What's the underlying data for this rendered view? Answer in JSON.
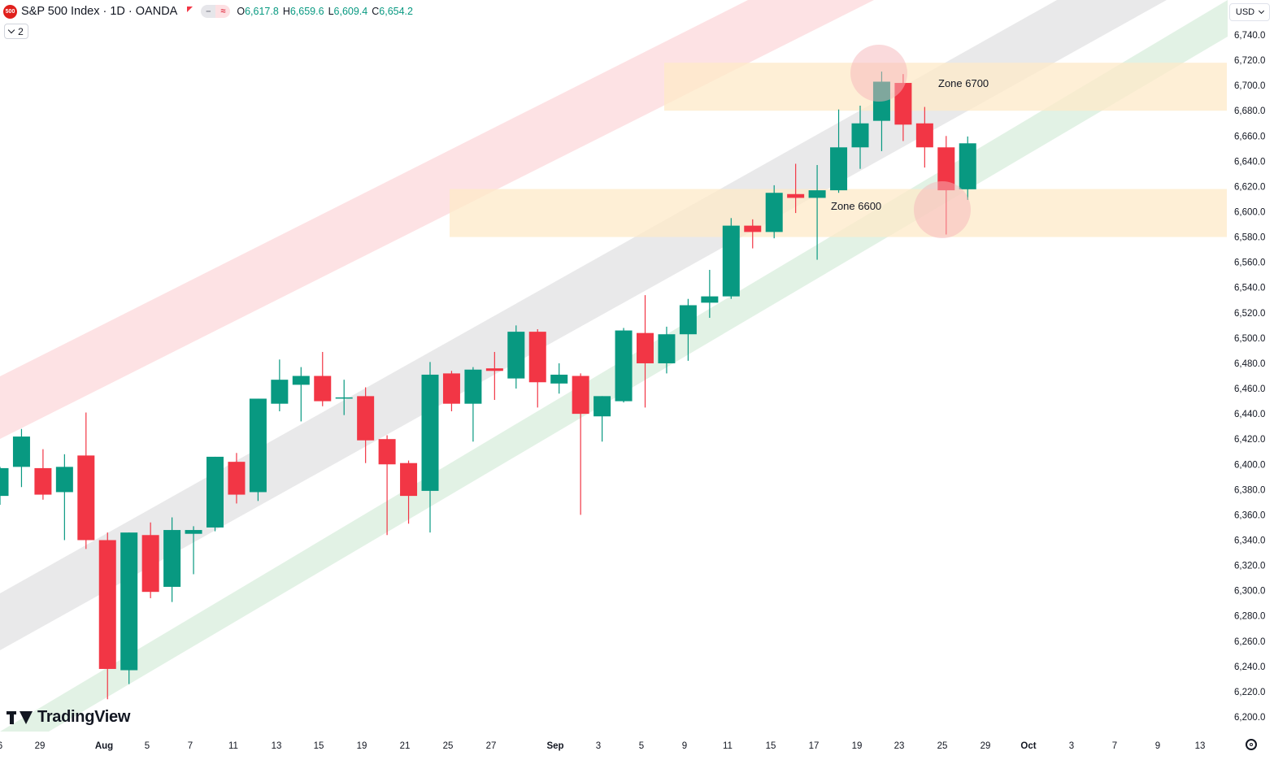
{
  "header": {
    "badge": "500",
    "title": "S&P 500 Index · 1D · OANDA",
    "ohlc": [
      {
        "label": "O",
        "value": "6,617.8"
      },
      {
        "label": "H",
        "value": "6,659.6"
      },
      {
        "label": "L",
        "value": "6,609.4"
      },
      {
        "label": "C",
        "value": "6,654.2"
      }
    ],
    "indicator_count": "2",
    "currency": "USD"
  },
  "branding": {
    "logo_text": "TradingView"
  },
  "colors": {
    "up": "#089981",
    "down": "#f23645",
    "zone": "#fde9c8",
    "channel_top": "#fcd5d9",
    "channel_mid": "#e3e3e5",
    "channel_bottom": "#d8eedc"
  },
  "chart_data": {
    "type": "candlestick",
    "ylim": [
      6190,
      6750
    ],
    "y_ticks": [
      "6,200.0",
      "6,220.0",
      "6,240.0",
      "6,260.0",
      "6,280.0",
      "6,300.0",
      "6,320.0",
      "6,340.0",
      "6,360.0",
      "6,380.0",
      "6,400.0",
      "6,420.0",
      "6,440.0",
      "6,460.0",
      "6,480.0",
      "6,500.0",
      "6,520.0",
      "6,540.0",
      "6,560.0",
      "6,580.0",
      "6,600.0",
      "6,620.0",
      "6,640.0",
      "6,660.0",
      "6,680.0",
      "6,700.0",
      "6,720.0",
      "6,740.0"
    ],
    "x_ticks": [
      "6",
      "29",
      "Aug",
      "5",
      "7",
      "11",
      "13",
      "15",
      "19",
      "21",
      "25",
      "27",
      "Sep",
      "3",
      "5",
      "9",
      "11",
      "15",
      "17",
      "19",
      "23",
      "25",
      "29",
      "Oct",
      "3",
      "7",
      "9",
      "13"
    ],
    "candles": [
      {
        "o": 6375,
        "h": 6398,
        "l": 6368,
        "c": 6397
      },
      {
        "o": 6398,
        "h": 6428,
        "l": 6382,
        "c": 6422
      },
      {
        "o": 6397,
        "h": 6412,
        "l": 6372,
        "c": 6376
      },
      {
        "o": 6378,
        "h": 6408,
        "l": 6340,
        "c": 6398
      },
      {
        "o": 6407,
        "h": 6441,
        "l": 6333,
        "c": 6340
      },
      {
        "o": 6340,
        "h": 6346,
        "l": 6214,
        "c": 6238
      },
      {
        "o": 6237,
        "h": 6346,
        "l": 6226,
        "c": 6346
      },
      {
        "o": 6344,
        "h": 6354,
        "l": 6294,
        "c": 6299
      },
      {
        "o": 6303,
        "h": 6358,
        "l": 6291,
        "c": 6348
      },
      {
        "o": 6345,
        "h": 6351,
        "l": 6313,
        "c": 6348
      },
      {
        "o": 6350,
        "h": 6406,
        "l": 6347,
        "c": 6406
      },
      {
        "o": 6402,
        "h": 6409,
        "l": 6369,
        "c": 6376
      },
      {
        "o": 6378,
        "h": 6452,
        "l": 6371,
        "c": 6452
      },
      {
        "o": 6448,
        "h": 6483,
        "l": 6442,
        "c": 6467
      },
      {
        "o": 6463,
        "h": 6477,
        "l": 6434,
        "c": 6470
      },
      {
        "o": 6470,
        "h": 6489,
        "l": 6446,
        "c": 6450
      },
      {
        "o": 6453,
        "h": 6467,
        "l": 6439,
        "c": 6453
      },
      {
        "o": 6454,
        "h": 6461,
        "l": 6401,
        "c": 6419
      },
      {
        "o": 6420,
        "h": 6423,
        "l": 6344,
        "c": 6400
      },
      {
        "o": 6401,
        "h": 6403,
        "l": 6353,
        "c": 6375
      },
      {
        "o": 6379,
        "h": 6481,
        "l": 6346,
        "c": 6471
      },
      {
        "o": 6472,
        "h": 6474,
        "l": 6442,
        "c": 6448
      },
      {
        "o": 6448,
        "h": 6477,
        "l": 6418,
        "c": 6475
      },
      {
        "o": 6476,
        "h": 6489,
        "l": 6451,
        "c": 6474
      },
      {
        "o": 6468,
        "h": 6510,
        "l": 6460,
        "c": 6505
      },
      {
        "o": 6505,
        "h": 6507,
        "l": 6445,
        "c": 6465
      },
      {
        "o": 6464,
        "h": 6480,
        "l": 6456,
        "c": 6471
      },
      {
        "o": 6470,
        "h": 6472,
        "l": 6360,
        "c": 6440
      },
      {
        "o": 6438,
        "h": 6454,
        "l": 6418,
        "c": 6454
      },
      {
        "o": 6450,
        "h": 6508,
        "l": 6449,
        "c": 6506
      },
      {
        "o": 6504,
        "h": 6534,
        "l": 6445,
        "c": 6480
      },
      {
        "o": 6480,
        "h": 6509,
        "l": 6472,
        "c": 6503
      },
      {
        "o": 6503,
        "h": 6531,
        "l": 6482,
        "c": 6526
      },
      {
        "o": 6528,
        "h": 6554,
        "l": 6516,
        "c": 6533
      },
      {
        "o": 6533,
        "h": 6595,
        "l": 6531,
        "c": 6589
      },
      {
        "o": 6589,
        "h": 6594,
        "l": 6571,
        "c": 6584
      },
      {
        "o": 6584,
        "h": 6621,
        "l": 6579,
        "c": 6615
      },
      {
        "o": 6614,
        "h": 6638,
        "l": 6599,
        "c": 6611
      },
      {
        "o": 6611,
        "h": 6637,
        "l": 6562,
        "c": 6617
      },
      {
        "o": 6617,
        "h": 6681,
        "l": 6615,
        "c": 6651
      },
      {
        "o": 6651,
        "h": 6684,
        "l": 6634,
        "c": 6670
      },
      {
        "o": 6672,
        "h": 6711,
        "l": 6648,
        "c": 6703
      },
      {
        "o": 6702,
        "h": 6709,
        "l": 6656,
        "c": 6669
      },
      {
        "o": 6670,
        "h": 6683,
        "l": 6635,
        "c": 6651
      },
      {
        "o": 6651,
        "h": 6660,
        "l": 6582,
        "c": 6617
      },
      {
        "o": 6617.8,
        "h": 6659.6,
        "l": 6609.4,
        "c": 6654.2
      }
    ],
    "zones": [
      {
        "label": "Zone 6700",
        "low": 6680,
        "high": 6718
      },
      {
        "label": "Zone 6600",
        "low": 6580,
        "high": 6618
      }
    ]
  }
}
